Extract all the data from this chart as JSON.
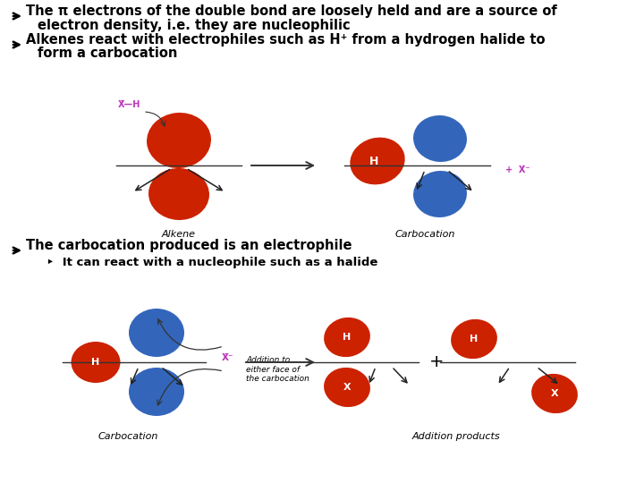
{
  "bg_color": "#ffffff",
  "text_color": "#000000",
  "bullet1_line1": "The π electrons of the double bond are loosely held and are a source of",
  "bullet1_line2": "electron density, i.e. they are nucleophilic",
  "bullet2_line1": "Alkenes react with electrophiles such as H⁺ from a hydrogen halide to",
  "bullet2_line2": "form a carbocation",
  "bullet3_line1": "The carbocation produced is an electrophile",
  "bullet3_sub": "It can react with a nucleophile such as a halide",
  "label_alkene": "Alkene",
  "label_carbocation": "Carbocation",
  "label_addition": "Addition products",
  "label_add_face": "Addition to\neither face of\nthe carbocation",
  "red_color": "#CC2200",
  "blue_color": "#3366BB",
  "magenta_color": "#BB33BB",
  "font_size_bullet": 10.5,
  "font_size_label": 8.0,
  "font_size_sub_bullet": 9.5
}
